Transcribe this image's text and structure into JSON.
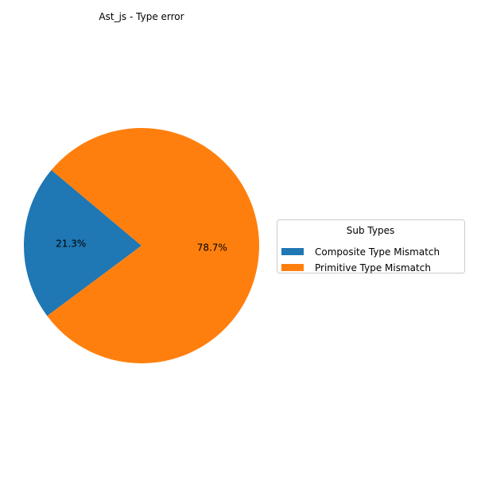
{
  "chart_data": {
    "type": "pie",
    "title": "Ast_js - Type error",
    "labels": [
      "Composite Type Mismatch",
      "Primitive Type Mismatch"
    ],
    "values": [
      21.3,
      78.7
    ],
    "percent_labels": [
      "21.3%",
      "78.7%"
    ],
    "colors": [
      "#1f77b4",
      "#ff7f0e"
    ],
    "legend": {
      "title": "Sub Types",
      "placement": "right"
    }
  }
}
